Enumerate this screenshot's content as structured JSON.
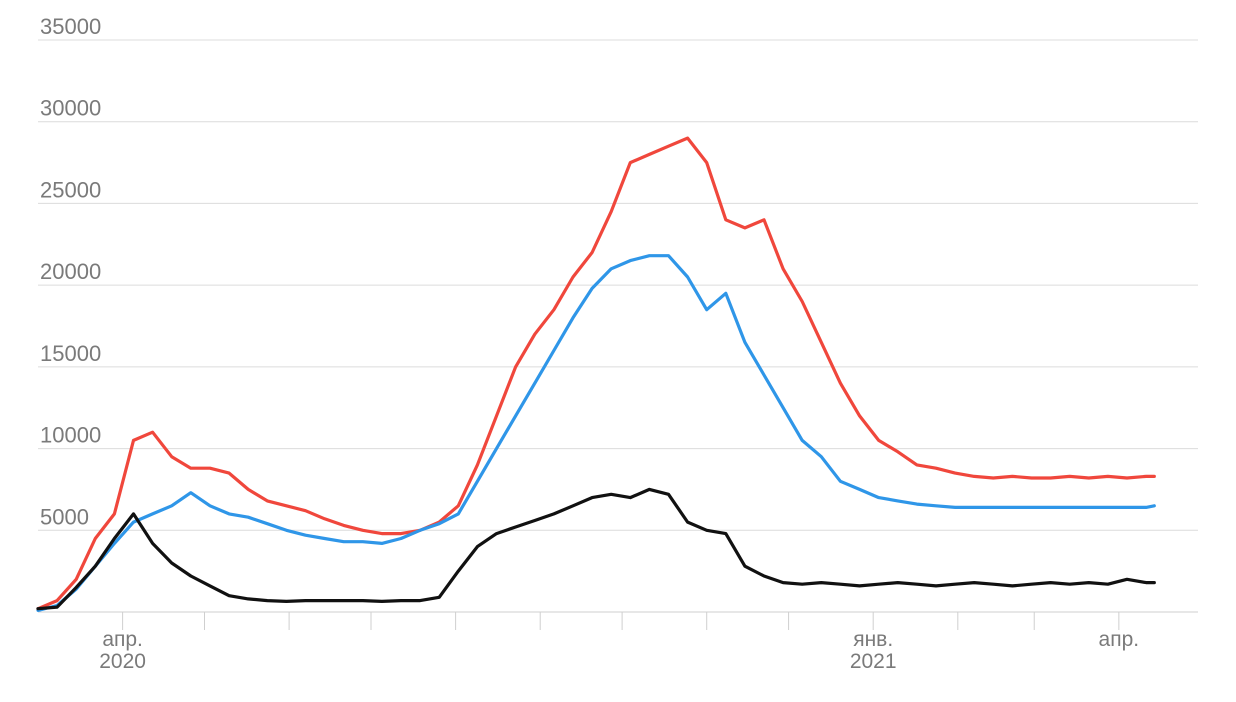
{
  "chart_data": {
    "type": "line",
    "title": "",
    "xlabel": "",
    "ylabel": "",
    "ylim": [
      0,
      35000
    ],
    "yticks": [
      5000,
      10000,
      15000,
      20000,
      25000,
      30000,
      35000
    ],
    "grid": true,
    "legend": "none",
    "x_tick_labels": [
      {
        "date": "2020-04-01",
        "label": "апр.",
        "year": "2020"
      },
      {
        "date": "2021-01-01",
        "label": "янв.",
        "year": "2021"
      },
      {
        "date": "2021-04-01",
        "label": "апр.",
        "year": ""
      }
    ],
    "x_minor_ticks": [
      "2020-05-01",
      "2020-06-01",
      "2020-07-01",
      "2020-08-01",
      "2020-09-01",
      "2020-10-01",
      "2020-11-01",
      "2020-12-01",
      "2021-02-01",
      "2021-03-01"
    ],
    "xlim": [
      "2020-03-01",
      "2021-04-30"
    ],
    "x": [
      "2020-03-01",
      "2020-03-08",
      "2020-03-15",
      "2020-03-22",
      "2020-03-29",
      "2020-04-05",
      "2020-04-12",
      "2020-04-19",
      "2020-04-26",
      "2020-05-03",
      "2020-05-10",
      "2020-05-17",
      "2020-05-24",
      "2020-05-31",
      "2020-06-07",
      "2020-06-14",
      "2020-06-21",
      "2020-06-28",
      "2020-07-05",
      "2020-07-12",
      "2020-07-19",
      "2020-07-26",
      "2020-08-02",
      "2020-08-09",
      "2020-08-16",
      "2020-08-23",
      "2020-08-30",
      "2020-09-06",
      "2020-09-13",
      "2020-09-20",
      "2020-09-27",
      "2020-10-04",
      "2020-10-11",
      "2020-10-18",
      "2020-10-25",
      "2020-11-01",
      "2020-11-08",
      "2020-11-15",
      "2020-11-22",
      "2020-11-29",
      "2020-12-06",
      "2020-12-13",
      "2020-12-20",
      "2020-12-27",
      "2021-01-03",
      "2021-01-10",
      "2021-01-17",
      "2021-01-24",
      "2021-01-31",
      "2021-02-07",
      "2021-02-14",
      "2021-02-21",
      "2021-02-28",
      "2021-03-07",
      "2021-03-14",
      "2021-03-21",
      "2021-03-28",
      "2021-04-04",
      "2021-04-11",
      "2021-04-14"
    ],
    "series": [
      {
        "color": "#f0473c",
        "values": [
          200,
          700,
          2000,
          4500,
          6000,
          10500,
          11000,
          9500,
          8800,
          8800,
          8500,
          7500,
          6800,
          6500,
          6200,
          5700,
          5300,
          5000,
          4800,
          4800,
          5000,
          5500,
          6500,
          9000,
          12000,
          15000,
          17000,
          18500,
          20500,
          22000,
          24500,
          27500,
          28000,
          28500,
          29000,
          27500,
          24000,
          23500,
          24000,
          21000,
          19000,
          16500,
          14000,
          12000,
          10500,
          9800,
          9000,
          8800,
          8500,
          8300,
          8200,
          8300,
          8200,
          8200,
          8300,
          8200,
          8300,
          8200,
          8300,
          8300
        ]
      },
      {
        "color": "#2f96e8",
        "values": [
          100,
          400,
          1400,
          2800,
          4200,
          5500,
          6000,
          6500,
          7300,
          6500,
          6000,
          5800,
          5400,
          5000,
          4700,
          4500,
          4300,
          4300,
          4200,
          4500,
          5000,
          5400,
          6000,
          8000,
          10000,
          12000,
          14000,
          16000,
          18000,
          19800,
          21000,
          21500,
          21800,
          21800,
          20500,
          18500,
          19500,
          16500,
          14500,
          12500,
          10500,
          9500,
          8000,
          7500,
          7000,
          6800,
          6600,
          6500,
          6400,
          6400,
          6400,
          6400,
          6400,
          6400,
          6400,
          6400,
          6400,
          6400,
          6400,
          6500
        ]
      },
      {
        "color": "#111111",
        "values": [
          200,
          300,
          1500,
          2800,
          4500,
          6000,
          4200,
          3000,
          2200,
          1600,
          1000,
          800,
          700,
          650,
          700,
          700,
          700,
          700,
          650,
          700,
          700,
          900,
          2500,
          4000,
          4800,
          5200,
          5600,
          6000,
          6500,
          7000,
          7200,
          7000,
          7500,
          7200,
          5500,
          5000,
          4800,
          2800,
          2200,
          1800,
          1700,
          1800,
          1700,
          1600,
          1700,
          1800,
          1700,
          1600,
          1700,
          1800,
          1700,
          1600,
          1700,
          1800,
          1700,
          1800,
          1700,
          2000,
          1800,
          1800
        ]
      }
    ]
  }
}
